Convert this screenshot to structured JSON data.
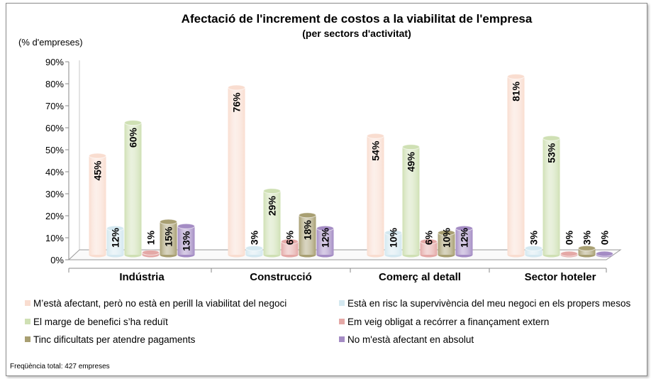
{
  "chart_data": {
    "type": "bar",
    "title": "Afectació de l'increment de costos a la viabilitat de l'empresa",
    "subtitle": "(per sectors d'activitat)",
    "ylabel": "(% d'empreses)",
    "xlabel": "",
    "ylim": [
      0,
      90
    ],
    "yticks": [
      "0%",
      "10%",
      "20%",
      "30%",
      "40%",
      "50%",
      "60%",
      "70%",
      "80%",
      "90%"
    ],
    "categories": [
      "Indústria",
      "Construcció",
      "Comerç al detall",
      "Sector hoteler"
    ],
    "series": [
      {
        "name": "M’està afectant, però no està en perill la viabilitat del negoci",
        "color": "#f9ddd0",
        "values": [
          45,
          76,
          54,
          81
        ]
      },
      {
        "name": "Està en risc la supervivència del meu negoci en els propers mesos",
        "color": "#d4e8f0",
        "values": [
          12,
          3,
          10,
          3
        ]
      },
      {
        "name": "El marge de benefici s’ha reduït",
        "color": "#cfe0b4",
        "values": [
          60,
          29,
          49,
          53
        ]
      },
      {
        "name": "Em veig obligat a recórrer a finançament extern",
        "color": "#e4a8a6",
        "values": [
          1,
          6,
          6,
          0
        ]
      },
      {
        "name": "Tinc dificultats per atendre pagaments",
        "color": "#a89f72",
        "values": [
          15,
          18,
          10,
          3
        ]
      },
      {
        "name": "No m'està afectant en absolut",
        "color": "#a48cc4",
        "values": [
          13,
          12,
          12,
          0
        ]
      }
    ],
    "data_labels": [
      [
        "45%",
        "76%",
        "54%",
        "81%"
      ],
      [
        "12%",
        "3%",
        "10%",
        "3%"
      ],
      [
        "60%",
        "29%",
        "49%",
        "53%"
      ],
      [
        "1%",
        "6%",
        "6%",
        "0%"
      ],
      [
        "15%",
        "18%",
        "10%",
        "3%"
      ],
      [
        "13%",
        "12%",
        "12%",
        "0%"
      ]
    ],
    "grid": false,
    "legend_position": "bottom",
    "footnote": "Freqüència total: 427 empreses"
  }
}
